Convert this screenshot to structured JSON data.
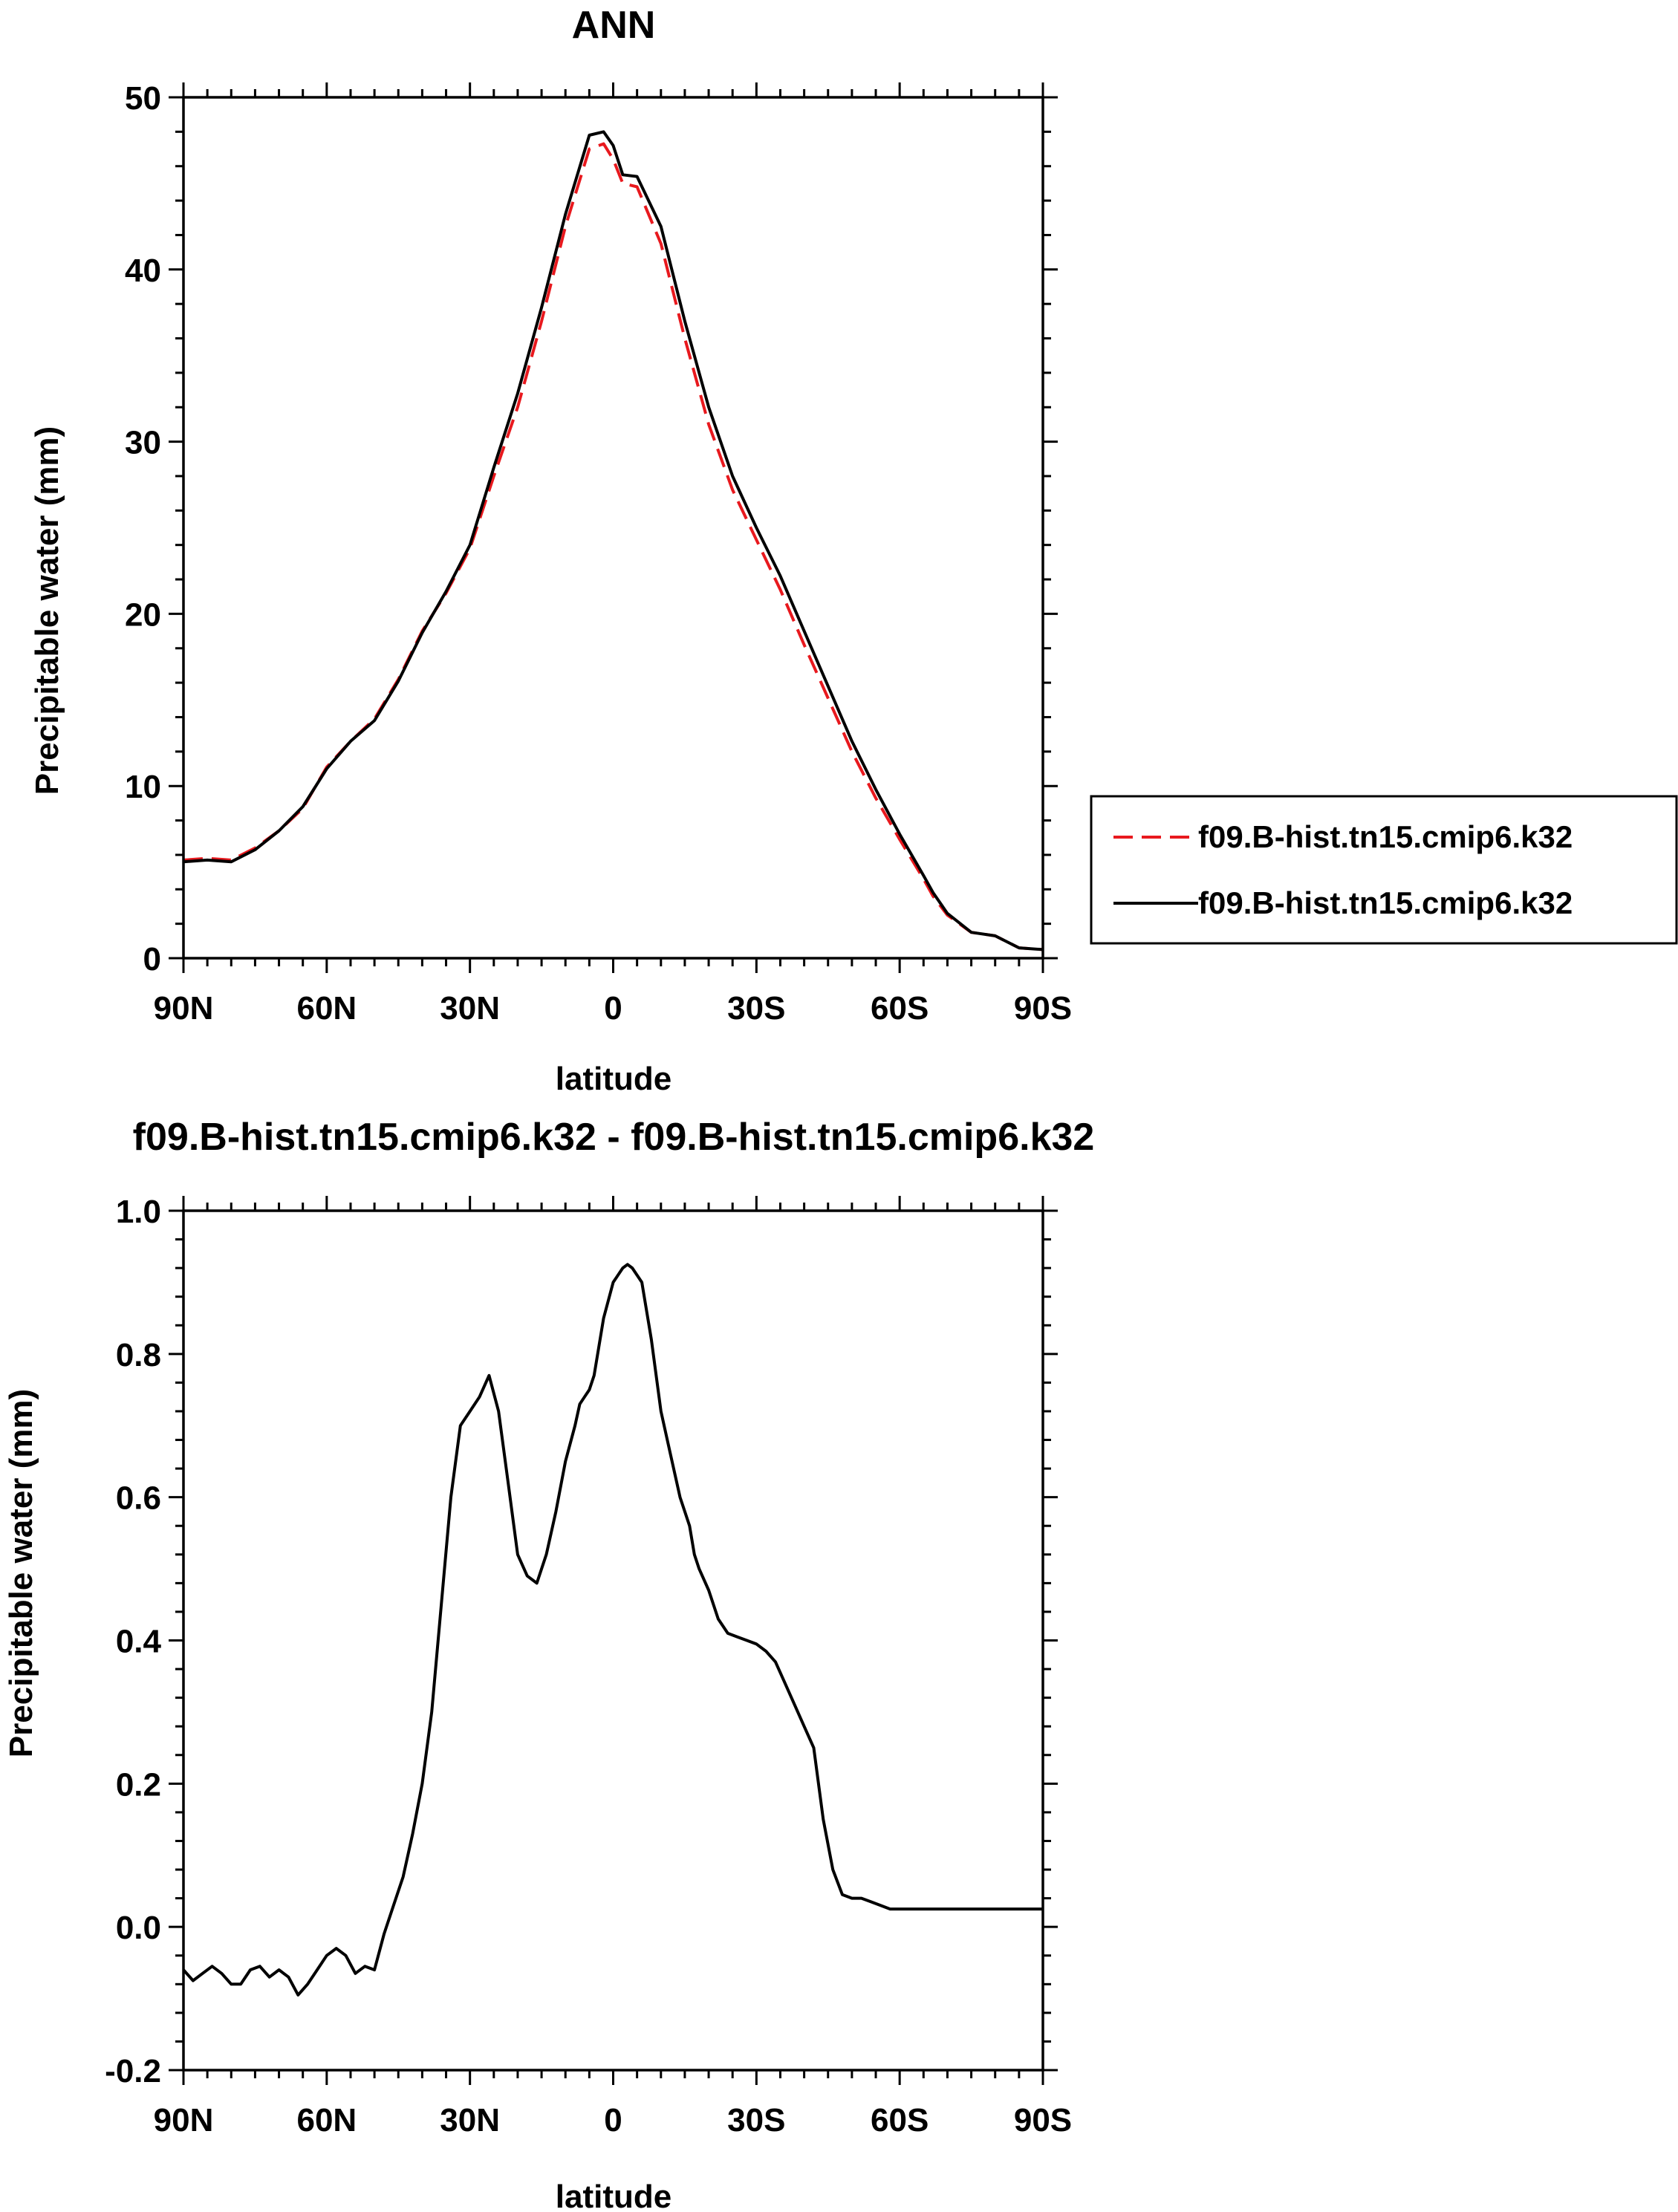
{
  "chart_data": [
    {
      "type": "line",
      "title": "ANN",
      "xlabel": "latitude",
      "ylabel": "Precipitable water (mm)",
      "xlim": [
        90,
        -90
      ],
      "ylim": [
        0,
        50
      ],
      "xticks": [
        90,
        60,
        30,
        0,
        -30,
        -60,
        -90
      ],
      "xtick_labels": [
        "90N",
        "60N",
        "30N",
        "0",
        "30S",
        "60S",
        "90S"
      ],
      "yticks": [
        0,
        10,
        20,
        30,
        40,
        50
      ],
      "ytick_labels": [
        "0",
        "10",
        "20",
        "30",
        "40",
        "50"
      ],
      "legend_position": "right",
      "series": [
        {
          "name": "f09.B-hist.tn15.cmip6.k32",
          "color": "#e8191e",
          "style": "dashed",
          "x": [
            90,
            85,
            80,
            75,
            70,
            65,
            60,
            55,
            50,
            45,
            40,
            35,
            30,
            25,
            20,
            15,
            10,
            5,
            2,
            0,
            -2,
            -5,
            -10,
            -15,
            -20,
            -25,
            -30,
            -35,
            -40,
            -45,
            -50,
            -55,
            -60,
            -65,
            -67,
            -70,
            -75,
            -80,
            -85,
            -90
          ],
          "y": [
            5.7,
            5.8,
            5.7,
            6.4,
            7.4,
            8.7,
            11.1,
            12.6,
            13.9,
            16.2,
            19.0,
            21.2,
            23.8,
            28.0,
            32.0,
            37.0,
            42.5,
            47.0,
            47.3,
            46.4,
            45.0,
            44.8,
            41.5,
            36.0,
            31.0,
            27.2,
            24.3,
            21.4,
            18.2,
            15.1,
            12.0,
            9.3,
            6.9,
            4.6,
            3.6,
            2.5,
            1.5,
            1.3,
            0.6,
            0.5
          ]
        },
        {
          "name": "f09.B-hist.tn15.cmip6.k32",
          "color": "#000000",
          "style": "solid",
          "x": [
            90,
            85,
            80,
            75,
            70,
            65,
            60,
            55,
            50,
            45,
            40,
            35,
            30,
            25,
            20,
            15,
            10,
            5,
            2,
            0,
            -2,
            -5,
            -10,
            -15,
            -20,
            -25,
            -30,
            -35,
            -40,
            -45,
            -50,
            -55,
            -60,
            -65,
            -67,
            -70,
            -75,
            -80,
            -85,
            -90
          ],
          "y": [
            5.6,
            5.7,
            5.6,
            6.3,
            7.4,
            8.8,
            11.0,
            12.6,
            13.8,
            16.1,
            18.9,
            21.3,
            24.0,
            28.5,
            32.8,
            37.8,
            43.2,
            47.8,
            48.0,
            47.2,
            45.5,
            45.4,
            42.5,
            37.0,
            32.0,
            28.0,
            25.0,
            22.2,
            19.0,
            15.8,
            12.6,
            9.8,
            7.2,
            4.8,
            3.8,
            2.6,
            1.5,
            1.3,
            0.6,
            0.5
          ]
        }
      ]
    },
    {
      "type": "line",
      "title": "f09.B-hist.tn15.cmip6.k32 - f09.B-hist.tn15.cmip6.k32",
      "xlabel": "latitude",
      "ylabel": "Precipitable water (mm)",
      "xlim": [
        90,
        -90
      ],
      "ylim": [
        -0.2,
        1.0
      ],
      "xticks": [
        90,
        60,
        30,
        0,
        -30,
        -60,
        -90
      ],
      "xtick_labels": [
        "90N",
        "60N",
        "30N",
        "0",
        "30S",
        "60S",
        "90S"
      ],
      "yticks": [
        -0.2,
        0.0,
        0.2,
        0.4,
        0.6,
        0.8,
        1.0
      ],
      "ytick_labels": [
        "-0.2",
        "0.0",
        "0.2",
        "0.4",
        "0.6",
        "0.8",
        "1.0"
      ],
      "series": [
        {
          "color": "#000000",
          "style": "solid",
          "x": [
            90,
            88,
            86,
            84,
            82,
            80,
            78,
            76,
            74,
            72,
            70,
            68,
            66,
            64,
            62,
            60,
            58,
            56,
            54,
            52,
            50,
            48,
            46,
            44,
            42,
            40,
            38,
            36,
            34,
            32,
            30,
            28,
            26,
            24,
            22,
            20,
            18,
            16,
            14,
            12,
            10,
            8,
            7,
            6,
            5,
            4,
            2,
            0,
            -1,
            -2,
            -3,
            -4,
            -6,
            -8,
            -10,
            -12,
            -14,
            -16,
            -17,
            -18,
            -20,
            -22,
            -24,
            -26,
            -28,
            -30,
            -32,
            -34,
            -36,
            -38,
            -40,
            -42,
            -44,
            -46,
            -48,
            -50,
            -52,
            -54,
            -56,
            -58,
            -60,
            -62,
            -64,
            -66,
            -68,
            -70,
            -72,
            -74,
            -76,
            -78,
            -80,
            -82,
            -84,
            -86,
            -88,
            -90
          ],
          "y": [
            -0.06,
            -0.075,
            -0.065,
            -0.055,
            -0.065,
            -0.08,
            -0.08,
            -0.06,
            -0.055,
            -0.07,
            -0.06,
            -0.07,
            -0.095,
            -0.08,
            -0.06,
            -0.04,
            -0.03,
            -0.04,
            -0.065,
            -0.055,
            -0.06,
            -0.01,
            0.03,
            0.07,
            0.13,
            0.2,
            0.3,
            0.45,
            0.6,
            0.7,
            0.72,
            0.74,
            0.77,
            0.72,
            0.62,
            0.52,
            0.49,
            0.48,
            0.52,
            0.58,
            0.65,
            0.7,
            0.73,
            0.74,
            0.75,
            0.77,
            0.85,
            0.9,
            0.91,
            0.92,
            0.925,
            0.92,
            0.9,
            0.82,
            0.72,
            0.66,
            0.6,
            0.56,
            0.52,
            0.5,
            0.47,
            0.43,
            0.41,
            0.405,
            0.4,
            0.395,
            0.385,
            0.37,
            0.34,
            0.31,
            0.28,
            0.25,
            0.15,
            0.08,
            0.045,
            0.04,
            0.04,
            0.035,
            0.03,
            0.025,
            0.025,
            0.025,
            0.025,
            0.025,
            0.025,
            0.025,
            0.025,
            0.025,
            0.025,
            0.025,
            0.025,
            0.025,
            0.025,
            0.025,
            0.025,
            0.025
          ]
        }
      ]
    }
  ]
}
